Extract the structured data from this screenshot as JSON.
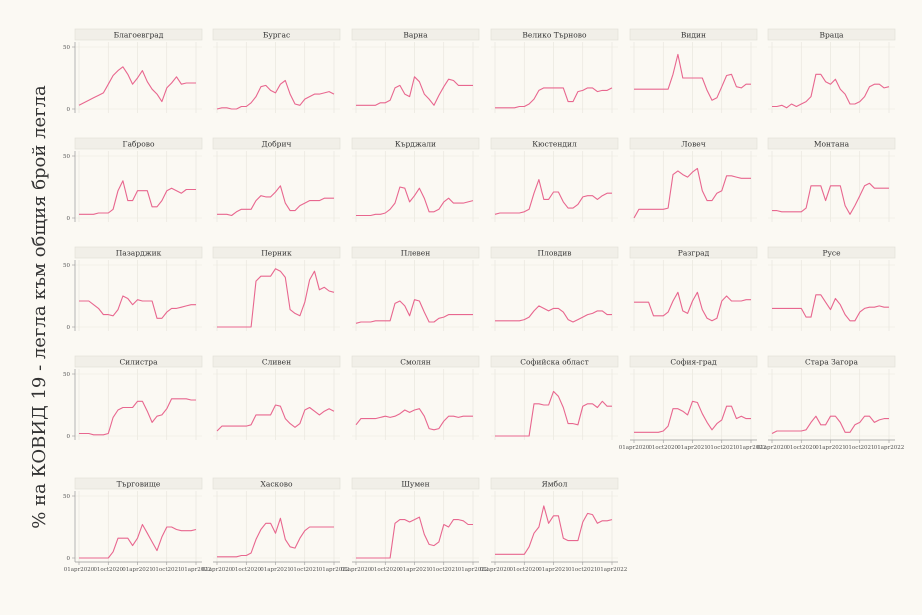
{
  "chart_data": {
    "type": "line",
    "ylabel": "% на КОВИД 19 - легла към общия брой легла",
    "xlabel": "",
    "ylim": [
      0,
      50
    ],
    "y_ticks": [
      0,
      50
    ],
    "x_ticks": [
      "01apr2020",
      "01oct2020",
      "01apr2021",
      "01oct2021",
      "01apr2022"
    ],
    "line_color": "#e8678f",
    "grid": true,
    "x": [
      "Apr 2020",
      "May 2020",
      "Jun 2020",
      "Jul 2020",
      "Aug 2020",
      "Sep 2020",
      "Oct 2020",
      "Nov 2020",
      "Dec 2020",
      "Jan 2021",
      "Feb 2021",
      "Mar 2021",
      "Apr 2021",
      "May 2021",
      "Jun 2021",
      "Jul 2021",
      "Aug 2021",
      "Sep 2021",
      "Oct 2021",
      "Nov 2021",
      "Dec 2021",
      "Jan 2022",
      "Feb 2022",
      "Mar 2022",
      "Apr 2022"
    ],
    "series": [
      {
        "name": "Благоевград",
        "values": [
          3,
          5,
          7,
          9,
          11,
          13,
          20,
          27,
          31,
          34,
          28,
          20,
          25,
          31,
          22,
          16,
          12,
          6,
          17,
          21,
          26,
          20,
          21,
          21,
          21
        ]
      },
      {
        "name": "Бургас",
        "values": [
          0,
          1,
          1,
          0,
          0,
          2,
          2,
          5,
          10,
          18,
          19,
          15,
          13,
          20,
          23,
          12,
          4,
          3,
          8,
          10,
          12,
          12,
          13,
          14,
          12
        ]
      },
      {
        "name": "Варна",
        "values": [
          3,
          3,
          3,
          3,
          3,
          5,
          5,
          7,
          17,
          19,
          12,
          10,
          26,
          22,
          12,
          8,
          3,
          11,
          18,
          24,
          23,
          19,
          19,
          19,
          19
        ]
      },
      {
        "name": "Велико Търново",
        "values": [
          1,
          1,
          1,
          1,
          1,
          2,
          2,
          4,
          8,
          15,
          17,
          17,
          17,
          17,
          17,
          6,
          6,
          14,
          15,
          17,
          17,
          14,
          15,
          15,
          17
        ]
      },
      {
        "name": "Видин",
        "values": [
          16,
          16,
          16,
          16,
          16,
          16,
          16,
          16,
          28,
          44,
          25,
          25,
          25,
          25,
          25,
          15,
          7,
          9,
          18,
          27,
          28,
          18,
          17,
          20,
          20
        ]
      },
      {
        "name": "Враца",
        "values": [
          2,
          2,
          3,
          1,
          4,
          2,
          4,
          6,
          10,
          28,
          28,
          22,
          20,
          24,
          16,
          12,
          4,
          4,
          6,
          10,
          18,
          20,
          20,
          17,
          18
        ]
      },
      {
        "name": "Габрово",
        "values": [
          3,
          3,
          3,
          3,
          4,
          4,
          4,
          7,
          22,
          30,
          14,
          14,
          22,
          22,
          22,
          9,
          9,
          14,
          22,
          24,
          22,
          20,
          23,
          23,
          23
        ]
      },
      {
        "name": "Добрич",
        "values": [
          3,
          3,
          3,
          2,
          5,
          7,
          7,
          7,
          14,
          18,
          17,
          17,
          21,
          26,
          12,
          6,
          6,
          10,
          12,
          14,
          14,
          14,
          16,
          16,
          16
        ]
      },
      {
        "name": "Кърджали",
        "values": [
          2,
          2,
          2,
          2,
          3,
          3,
          4,
          7,
          12,
          25,
          24,
          13,
          18,
          24,
          16,
          5,
          5,
          7,
          13,
          16,
          12,
          12,
          12,
          13,
          14
        ]
      },
      {
        "name": "Кюстендил",
        "values": [
          3,
          4,
          4,
          4,
          4,
          4,
          5,
          7,
          20,
          31,
          15,
          15,
          21,
          21,
          13,
          8,
          8,
          11,
          17,
          18,
          18,
          15,
          18,
          20,
          20
        ]
      },
      {
        "name": "Ловеч",
        "values": [
          0,
          7,
          7,
          7,
          7,
          7,
          7,
          8,
          35,
          38,
          35,
          33,
          37,
          40,
          22,
          14,
          14,
          20,
          22,
          34,
          34,
          33,
          32,
          32,
          32
        ]
      },
      {
        "name": "Монтана",
        "values": [
          6,
          6,
          5,
          5,
          5,
          5,
          5,
          8,
          26,
          26,
          26,
          14,
          26,
          26,
          26,
          10,
          3,
          10,
          18,
          26,
          28,
          24,
          24,
          24,
          24
        ]
      },
      {
        "name": "Пазарджик",
        "values": [
          21,
          21,
          21,
          18,
          15,
          10,
          10,
          9,
          14,
          25,
          23,
          18,
          22,
          21,
          21,
          21,
          7,
          7,
          12,
          15,
          15,
          16,
          17,
          18,
          18
        ]
      },
      {
        "name": "Перник",
        "values": [
          0,
          0,
          0,
          0,
          0,
          0,
          0,
          0,
          37,
          41,
          41,
          41,
          47,
          45,
          40,
          14,
          11,
          9,
          20,
          38,
          45,
          30,
          32,
          29,
          28
        ]
      },
      {
        "name": "Плевен",
        "values": [
          3,
          4,
          4,
          4,
          5,
          5,
          5,
          5,
          19,
          21,
          17,
          9,
          22,
          21,
          12,
          4,
          4,
          7,
          8,
          10,
          10,
          10,
          10,
          10,
          10
        ]
      },
      {
        "name": "Пловдив",
        "values": [
          5,
          5,
          5,
          5,
          5,
          5,
          6,
          8,
          13,
          17,
          15,
          13,
          15,
          15,
          12,
          6,
          4,
          6,
          8,
          10,
          11,
          13,
          13,
          10,
          10
        ]
      },
      {
        "name": "Разград",
        "values": [
          20,
          20,
          20,
          20,
          9,
          9,
          9,
          12,
          21,
          28,
          13,
          11,
          21,
          28,
          14,
          7,
          5,
          7,
          21,
          25,
          21,
          21,
          21,
          22,
          22
        ]
      },
      {
        "name": "Русе",
        "values": [
          15,
          15,
          15,
          15,
          15,
          15,
          15,
          8,
          8,
          26,
          26,
          20,
          14,
          23,
          18,
          10,
          5,
          5,
          12,
          15,
          16,
          16,
          17,
          16,
          16
        ]
      },
      {
        "name": "Силистра",
        "values": [
          2,
          2,
          2,
          1,
          1,
          1,
          2,
          15,
          21,
          23,
          23,
          23,
          28,
          28,
          20,
          11,
          16,
          17,
          22,
          30,
          30,
          30,
          30,
          29,
          29
        ]
      },
      {
        "name": "Сливен",
        "values": [
          4,
          8,
          8,
          8,
          8,
          8,
          8,
          9,
          17,
          17,
          17,
          17,
          25,
          24,
          14,
          10,
          7,
          10,
          21,
          23,
          20,
          17,
          20,
          22,
          20
        ]
      },
      {
        "name": "Смолян",
        "values": [
          9,
          14,
          14,
          14,
          14,
          15,
          16,
          15,
          16,
          18,
          21,
          19,
          21,
          22,
          16,
          6,
          5,
          6,
          12,
          16,
          16,
          15,
          16,
          16,
          16
        ]
      },
      {
        "name": "Софийска област",
        "values": [
          0,
          0,
          0,
          0,
          0,
          0,
          0,
          0,
          26,
          26,
          25,
          25,
          36,
          32,
          23,
          10,
          10,
          9,
          24,
          26,
          26,
          23,
          28,
          24,
          24
        ]
      },
      {
        "name": "София-град",
        "values": [
          3,
          3,
          3,
          3,
          3,
          3,
          4,
          8,
          22,
          22,
          20,
          17,
          28,
          27,
          18,
          11,
          5,
          10,
          13,
          24,
          24,
          14,
          16,
          14,
          14
        ]
      },
      {
        "name": "Стара Загора",
        "values": [
          2,
          4,
          4,
          4,
          4,
          4,
          4,
          5,
          11,
          16,
          9,
          9,
          16,
          16,
          11,
          3,
          3,
          9,
          11,
          16,
          16,
          11,
          13,
          14,
          14
        ]
      },
      {
        "name": "Търговище",
        "values": [
          0,
          0,
          0,
          0,
          0,
          0,
          0,
          5,
          16,
          16,
          16,
          10,
          16,
          27,
          20,
          13,
          6,
          17,
          25,
          25,
          23,
          22,
          22,
          22,
          23
        ]
      },
      {
        "name": "Хасково",
        "values": [
          1,
          1,
          1,
          1,
          1,
          2,
          2,
          4,
          15,
          23,
          28,
          28,
          20,
          32,
          15,
          9,
          8,
          16,
          22,
          25,
          25,
          25,
          25,
          25,
          25
        ]
      },
      {
        "name": "Шумен",
        "values": [
          0,
          0,
          0,
          0,
          0,
          0,
          0,
          0,
          28,
          31,
          31,
          29,
          31,
          33,
          19,
          11,
          10,
          13,
          27,
          25,
          31,
          31,
          30,
          27,
          27
        ]
      },
      {
        "name": "Ямбол",
        "values": [
          3,
          3,
          3,
          3,
          3,
          3,
          3,
          9,
          20,
          25,
          42,
          28,
          34,
          34,
          16,
          14,
          14,
          14,
          29,
          36,
          35,
          28,
          30,
          30,
          31
        ]
      }
    ]
  }
}
